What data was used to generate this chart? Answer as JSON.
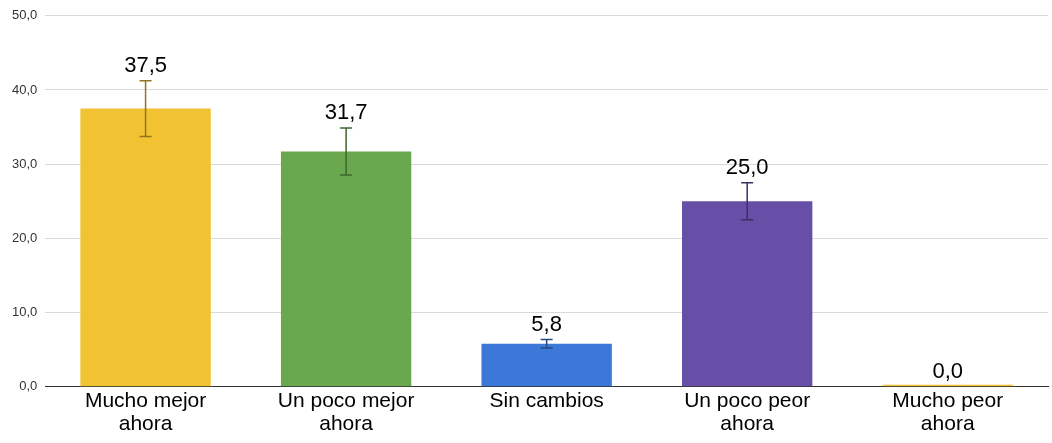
{
  "chart_data": {
    "type": "bar",
    "categories": [
      "Mucho mejor ahora",
      "Un poco mejor ahora",
      "Sin cambios",
      "Un poco peor ahora",
      "Mucho peor ahora"
    ],
    "values": [
      37.5,
      31.7,
      5.8,
      25.0,
      0.0
    ],
    "colors": [
      "#f1c232",
      "#6aa84f",
      "#3c78d8",
      "#674ea7",
      "#f1c232"
    ],
    "errors": [
      3.75,
      3.17,
      0.58,
      2.5,
      0
    ],
    "value_labels": [
      "37,5",
      "31,7",
      "5,8",
      "25,0",
      "0,0"
    ],
    "ylim": [
      0,
      50
    ],
    "yticks": [
      {
        "value": 0,
        "label": "0,0"
      },
      {
        "value": 10,
        "label": "10,0"
      },
      {
        "value": 20,
        "label": "20,0"
      },
      {
        "value": 30,
        "label": "30,0"
      },
      {
        "value": 40,
        "label": "40,0"
      },
      {
        "value": 50,
        "label": "50,0"
      }
    ],
    "grid": "y",
    "legend": false
  }
}
